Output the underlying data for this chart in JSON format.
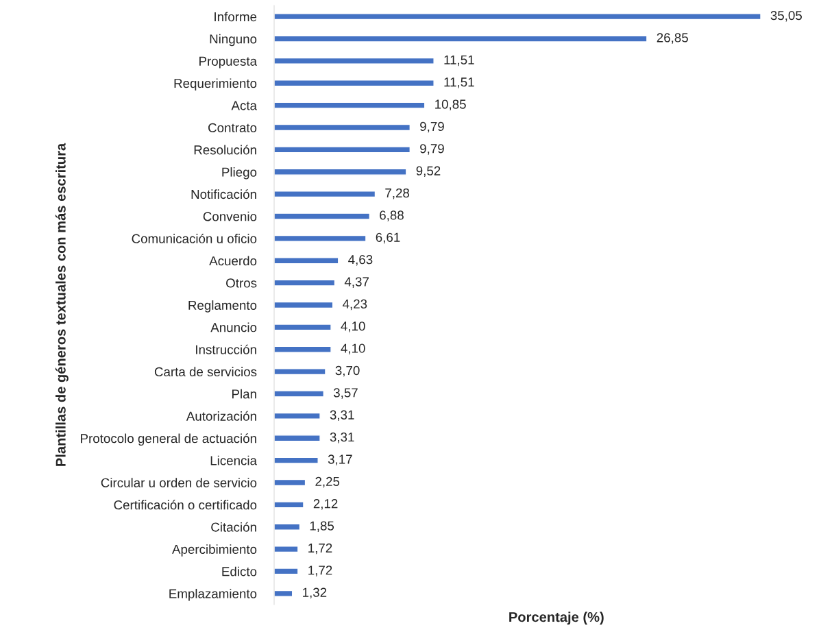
{
  "chart_data": {
    "type": "bar",
    "orientation": "horizontal",
    "xlabel": "Porcentaje (%)",
    "ylabel": "Plantillas de géneros textuales con más escritura",
    "categories": [
      "Informe",
      "Ninguno",
      "Propuesta",
      "Requerimiento",
      "Acta",
      "Contrato",
      "Resolución",
      "Pliego",
      "Notificación",
      "Convenio",
      "Comunicación u oficio",
      "Acuerdo",
      "Otros",
      "Reglamento",
      "Anuncio",
      "Instrucción",
      "Carta de servicios",
      "Plan",
      "Autorización",
      "Protocolo general de actuación",
      "Licencia",
      "Circular u orden de servicio",
      "Certificación o certificado",
      "Citación",
      "Apercibimiento",
      "Edicto",
      "Emplazamiento"
    ],
    "values": [
      35.05,
      26.85,
      11.51,
      11.51,
      10.85,
      9.79,
      9.79,
      9.52,
      7.28,
      6.88,
      6.61,
      4.63,
      4.37,
      4.23,
      4.1,
      4.1,
      3.7,
      3.57,
      3.31,
      3.31,
      3.17,
      2.25,
      2.12,
      1.85,
      1.72,
      1.72,
      1.32
    ],
    "value_labels": [
      "35,05",
      "26,85",
      "11,51",
      "11,51",
      "10,85",
      "9,79",
      "9,79",
      "9,52",
      "7,28",
      "6,88",
      "6,61",
      "4,63",
      "4,37",
      "4,23",
      "4,10",
      "4,10",
      "3,70",
      "3,57",
      "3,31",
      "3,31",
      "3,17",
      "2,25",
      "2,12",
      "1,85",
      "1,72",
      "1,72",
      "1,32"
    ],
    "color": "#4472c4",
    "tick_labels": "y",
    "grid": false,
    "legend": false
  }
}
